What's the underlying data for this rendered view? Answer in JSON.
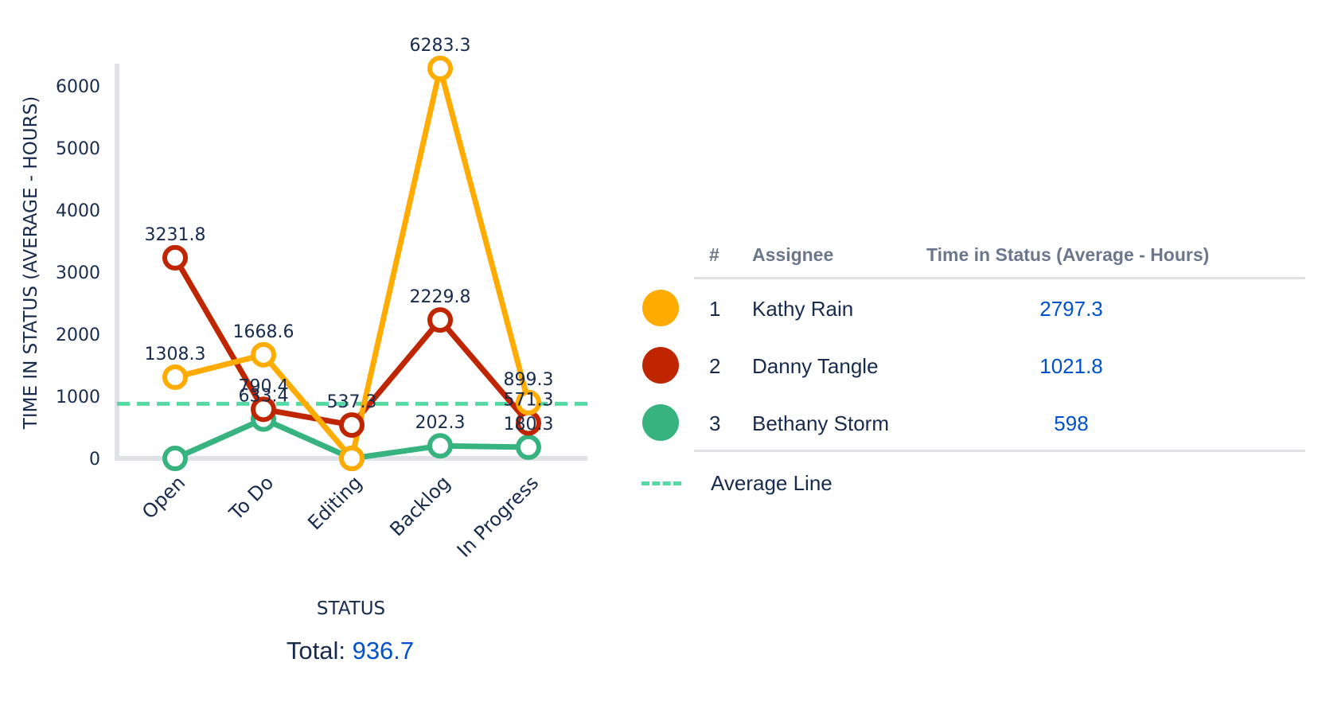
{
  "chart_data": {
    "type": "line",
    "xlabel": "STATUS",
    "ylabel": "TIME IN STATUS (AVERAGE - HOURS)",
    "categories": [
      "Open",
      "To Do",
      "Editing",
      "Backlog",
      "In Progress"
    ],
    "ylim": [
      0,
      6000
    ],
    "yticks": [
      0,
      1000,
      2000,
      3000,
      4000,
      5000,
      6000
    ],
    "grid": false,
    "series": [
      {
        "name": "Kathy Rain",
        "color": "#ffab00",
        "values": [
          1308.3,
          1668.6,
          0,
          6283.3,
          899.3
        ]
      },
      {
        "name": "Danny Tangle",
        "color": "#bf2600",
        "values": [
          3231.8,
          790.4,
          537.3,
          2229.8,
          571.3
        ]
      },
      {
        "name": "Bethany Storm",
        "color": "#36b37e",
        "values": [
          0,
          633.4,
          0,
          202.3,
          180.3
        ]
      }
    ],
    "data_labels": {
      "Kathy Rain": [
        "1308.3",
        "1668.6",
        "",
        "6283.3",
        "899.3"
      ],
      "Danny Tangle": [
        "3231.8",
        "790.4",
        "537.3",
        "2229.8",
        "571.3"
      ],
      "Bethany Storm": [
        "",
        "633.4",
        "",
        "202.3",
        "180.3"
      ]
    },
    "average_line": {
      "value": 880,
      "color": "#57d9a3"
    }
  },
  "total": {
    "label": "Total:",
    "value": "936.7"
  },
  "legend": {
    "headers": {
      "rank": "#",
      "assignee": "Assignee",
      "value": "Time in Status (Average - Hours)"
    },
    "rows": [
      {
        "rank": "1",
        "name": "Kathy Rain",
        "value": "2797.3",
        "color": "#ffab00"
      },
      {
        "rank": "2",
        "name": "Danny Tangle",
        "value": "1021.8",
        "color": "#bf2600"
      },
      {
        "rank": "3",
        "name": "Bethany Storm",
        "value": "598",
        "color": "#36b37e"
      }
    ],
    "average_label": "Average Line",
    "average_color": "#57d9a3"
  }
}
